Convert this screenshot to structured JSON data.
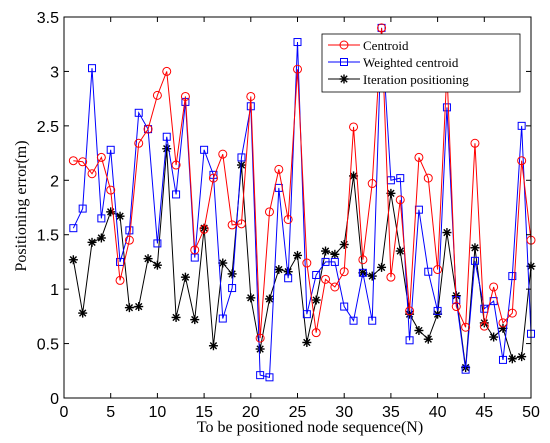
{
  "chart_data": {
    "type": "line",
    "xlabel": "To be positioned node sequence(N)",
    "ylabel": "Positioning error(m)",
    "xlim": [
      0,
      50
    ],
    "ylim": [
      0,
      3.5
    ],
    "xticks": [
      0,
      5,
      10,
      15,
      20,
      25,
      30,
      35,
      40,
      45,
      50
    ],
    "yticks": [
      0,
      0.5,
      1,
      1.5,
      2,
      2.5,
      3,
      3.5
    ],
    "ytick_labels": [
      "0",
      "0.5",
      "1",
      "1.5",
      "2",
      "2.5",
      "3",
      "3.5"
    ],
    "grid": false,
    "legend_position": "top-right",
    "x": [
      1,
      2,
      3,
      4,
      5,
      6,
      7,
      8,
      9,
      10,
      11,
      12,
      13,
      14,
      15,
      16,
      17,
      18,
      19,
      20,
      21,
      22,
      23,
      24,
      25,
      26,
      27,
      28,
      29,
      30,
      31,
      32,
      33,
      34,
      35,
      36,
      37,
      38,
      39,
      40,
      41,
      42,
      43,
      44,
      45,
      46,
      47,
      48,
      49,
      50
    ],
    "series": [
      {
        "name": "Centroid",
        "color": "#ff0000",
        "marker": "circle",
        "values": [
          2.18,
          2.17,
          2.06,
          2.21,
          1.91,
          1.08,
          1.45,
          2.34,
          2.47,
          2.78,
          3.0,
          2.14,
          2.77,
          1.36,
          1.55,
          2.02,
          2.24,
          1.59,
          1.6,
          2.77,
          0.55,
          1.71,
          2.1,
          1.64,
          3.02,
          1.24,
          0.6,
          1.09,
          1.02,
          1.16,
          2.49,
          1.27,
          1.97,
          3.4,
          1.11,
          1.82,
          0.8,
          2.21,
          2.02,
          1.18,
          3.0,
          0.84,
          0.65,
          2.34,
          0.66,
          1.02,
          0.69,
          0.78,
          2.18,
          1.45
        ]
      },
      {
        "name": "Weighted centroid",
        "color": "#0000ff",
        "marker": "square",
        "values": [
          1.56,
          1.74,
          3.03,
          1.65,
          2.28,
          1.25,
          1.54,
          2.62,
          2.47,
          1.42,
          2.4,
          1.87,
          2.72,
          1.29,
          2.28,
          2.05,
          0.73,
          1.01,
          2.21,
          2.68,
          0.21,
          0.19,
          1.93,
          1.1,
          3.27,
          0.77,
          1.13,
          1.25,
          1.25,
          0.84,
          0.71,
          1.15,
          0.71,
          3.4,
          2.0,
          2.02,
          0.53,
          1.73,
          1.16,
          0.8,
          2.67,
          0.9,
          0.26,
          1.26,
          0.82,
          0.89,
          0.35,
          1.12,
          2.5,
          0.59
        ]
      },
      {
        "name": "Iteration positioning",
        "color": "#000000",
        "marker": "star",
        "values": [
          1.27,
          0.78,
          1.43,
          1.47,
          1.71,
          1.67,
          0.83,
          0.84,
          1.28,
          1.22,
          2.29,
          0.74,
          1.11,
          0.72,
          1.56,
          0.48,
          1.24,
          1.14,
          2.14,
          0.92,
          0.45,
          0.91,
          1.18,
          1.16,
          1.31,
          0.51,
          0.9,
          1.35,
          1.32,
          1.41,
          2.04,
          1.15,
          1.12,
          1.2,
          1.88,
          1.35,
          0.77,
          0.62,
          0.54,
          0.77,
          1.52,
          0.94,
          0.28,
          1.38,
          0.69,
          0.56,
          0.64,
          0.36,
          0.38,
          1.21
        ]
      }
    ]
  }
}
